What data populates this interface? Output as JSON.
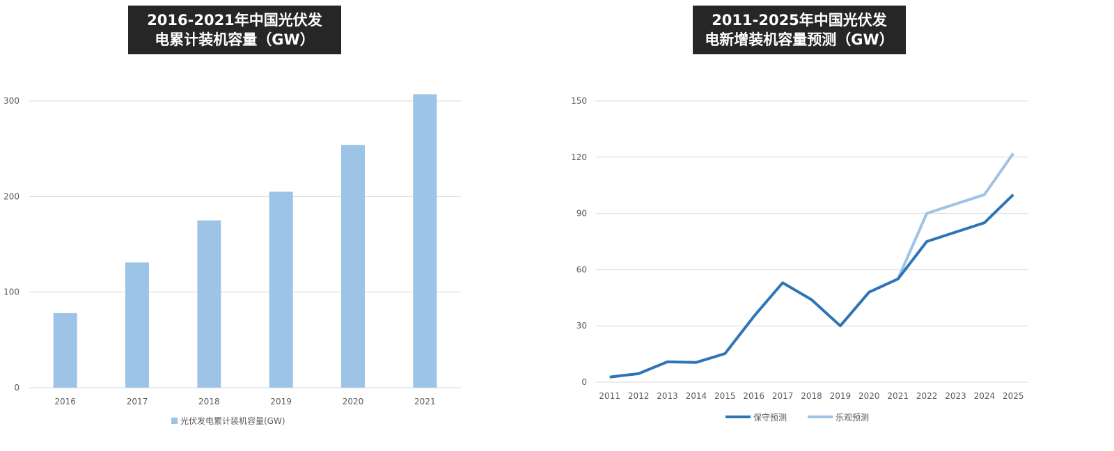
{
  "chart_data": [
    {
      "type": "bar",
      "title_lines": [
        "2016-2021年中国光伏发",
        "电累计装机容量（GW）"
      ],
      "categories": [
        "2016",
        "2017",
        "2018",
        "2019",
        "2020",
        "2021"
      ],
      "series": [
        {
          "name": "光伏发电累计装机容量(GW)",
          "values": [
            78,
            131,
            175,
            205,
            254,
            307
          ],
          "color": "#9DC3E6"
        }
      ],
      "ylim": [
        0,
        300
      ],
      "yticks": [
        0,
        100,
        200,
        300
      ],
      "grid": true,
      "legend": "bottom"
    },
    {
      "type": "line",
      "title_lines": [
        "2011-2025年中国光伏发",
        "电新增装机容量预测（GW）"
      ],
      "categories": [
        "2011",
        "2012",
        "2013",
        "2014",
        "2015",
        "2016",
        "2017",
        "2018",
        "2019",
        "2020",
        "2021",
        "2022",
        "2023",
        "2024",
        "2025"
      ],
      "series": [
        {
          "name": "保守预测",
          "values": [
            2.7,
            4.5,
            10.8,
            10.5,
            15.2,
            35,
            53,
            44,
            30,
            48,
            55,
            75,
            80,
            85,
            100
          ],
          "color": "#2E75B6"
        },
        {
          "name": "乐观预测",
          "values": [
            null,
            null,
            null,
            null,
            null,
            null,
            null,
            null,
            null,
            null,
            55,
            90,
            95,
            100,
            122
          ],
          "color": "#9DC3E6"
        }
      ],
      "ylim": [
        0,
        150
      ],
      "yticks": [
        0,
        30,
        60,
        90,
        120,
        150
      ],
      "grid": true,
      "legend": "bottom"
    }
  ]
}
